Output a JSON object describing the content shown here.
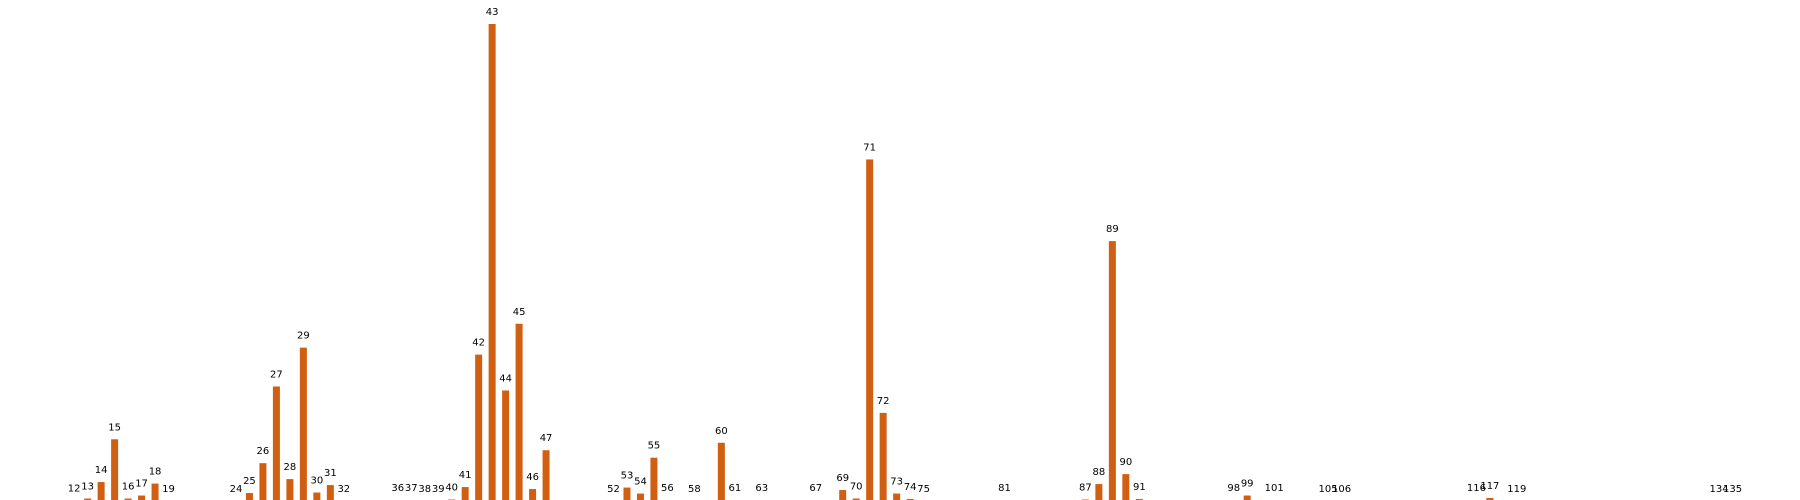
{
  "chart_data": {
    "type": "bar",
    "title": "",
    "xlabel": "",
    "ylabel": "",
    "grid": false,
    "legend": "none",
    "bar_color": "#d15f12",
    "label_color": "#000000",
    "xlim": [
      6.5,
      140
    ],
    "ylim": [
      0,
      48
    ],
    "categories": [
      "12",
      "13",
      "14",
      "15",
      "16",
      "17",
      "18",
      "19",
      "24",
      "25",
      "26",
      "27",
      "28",
      "29",
      "30",
      "31",
      "32",
      "36",
      "37",
      "38",
      "39",
      "40",
      "41",
      "42",
      "43",
      "44",
      "45",
      "46",
      "47",
      "52",
      "53",
      "54",
      "55",
      "56",
      "58",
      "60",
      "61",
      "63",
      "67",
      "69",
      "70",
      "71",
      "72",
      "73",
      "74",
      "75",
      "81",
      "87",
      "88",
      "89",
      "90",
      "91",
      "98",
      "99",
      "101",
      "105",
      "106",
      "116",
      "117",
      "119",
      "134",
      "135"
    ],
    "values": [
      0.15,
      0.35,
      2.0,
      6.3,
      0.35,
      0.65,
      1.85,
      0.1,
      0.1,
      0.9,
      3.9,
      11.6,
      2.3,
      15.5,
      0.95,
      1.7,
      0.1,
      0.2,
      0.2,
      0.1,
      0.1,
      0.25,
      1.5,
      14.8,
      48.0,
      11.2,
      17.9,
      1.3,
      5.2,
      0.1,
      1.45,
      0.85,
      4.45,
      0.2,
      0.1,
      5.95,
      0.2,
      0.2,
      0.2,
      1.2,
      0.35,
      34.4,
      8.95,
      0.85,
      0.3,
      0.1,
      0.2,
      0.25,
      1.8,
      26.2,
      2.8,
      0.3,
      0.2,
      0.65,
      0.2,
      0.1,
      0.1,
      0.2,
      0.4,
      0.1,
      0.05,
      0.1
    ]
  }
}
